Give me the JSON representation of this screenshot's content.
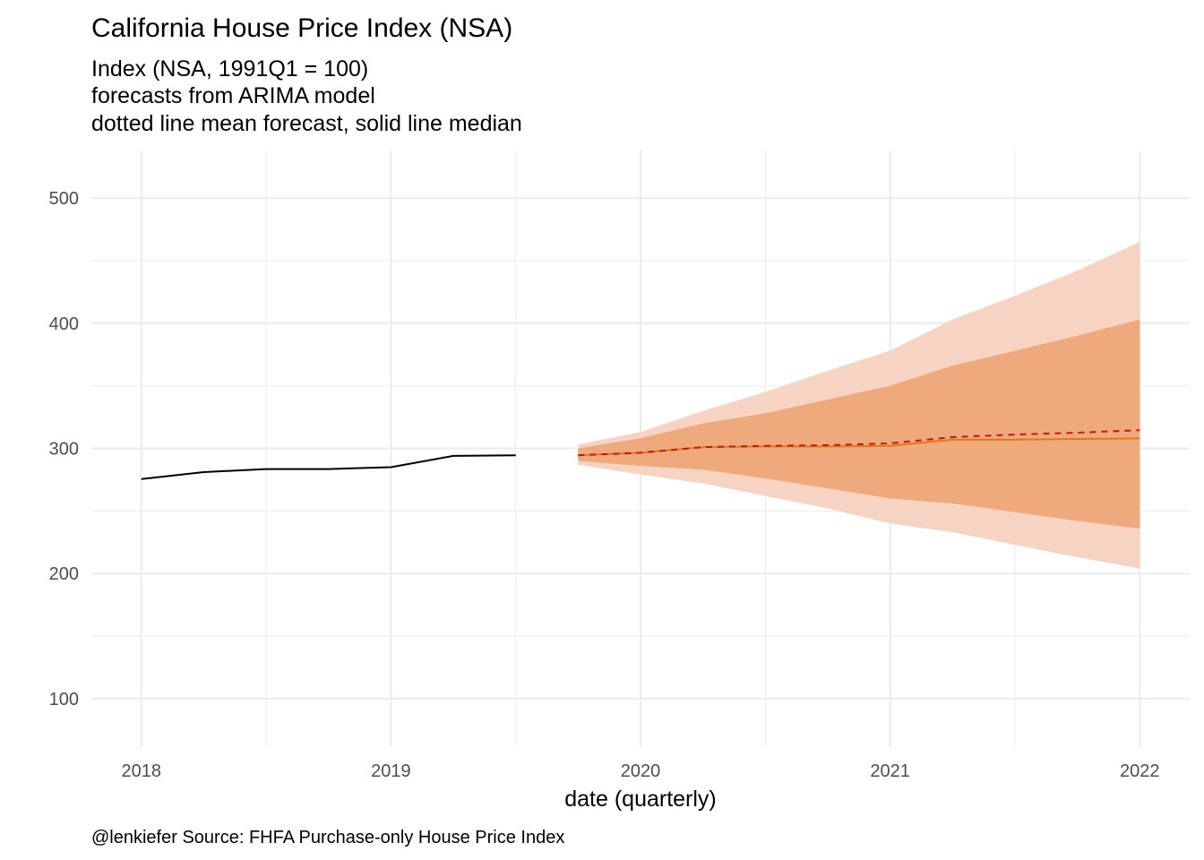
{
  "chart_data": {
    "type": "line",
    "title": "California House Price Index (NSA)",
    "subtitle": [
      "Index (NSA, 1991Q1 = 100)",
      "forecasts from ARIMA model",
      "dotted line mean forecast, solid line median"
    ],
    "xlabel": "date (quarterly)",
    "ylabel": "",
    "caption": "@lenkiefer Source: FHFA Purchase-only House Price Index",
    "xlim": [
      2017.8,
      2022.2
    ],
    "ylim": [
      62,
      538
    ],
    "x_ticks": [
      2018,
      2019,
      2020,
      2021,
      2022
    ],
    "x_tick_labels": [
      "2018",
      "2019",
      "2020",
      "2021",
      "2022"
    ],
    "y_ticks": [
      100,
      200,
      300,
      400,
      500
    ],
    "y_tick_labels": [
      "100",
      "200",
      "300",
      "400",
      "500"
    ],
    "grid": true,
    "colors": {
      "history": "#000000",
      "band_outer": "#f6d3c2",
      "band_inner": "#eeaa7c",
      "median": "#e07a10",
      "mean": "#c81414",
      "grid": "#ebebeb"
    },
    "series": [
      {
        "kind": "history",
        "x": [
          2018.0,
          2018.25,
          2018.5,
          2018.75,
          2019.0,
          2019.25,
          2019.5
        ],
        "values": [
          275.5,
          281,
          283.5,
          283.5,
          285,
          294,
          294.5
        ]
      },
      {
        "kind": "band_outer",
        "x": [
          2019.75,
          2020.0,
          2020.25,
          2020.5,
          2020.75,
          2021.0,
          2021.25,
          2021.5,
          2021.75,
          2022.0
        ],
        "lower": [
          287,
          279,
          272,
          262,
          252,
          240,
          233,
          223,
          213,
          204
        ],
        "upper": [
          303,
          313,
          330,
          345,
          362,
          378,
          403,
          422,
          442,
          465
        ]
      },
      {
        "kind": "band_inner",
        "x": [
          2019.75,
          2020.0,
          2020.25,
          2020.5,
          2020.75,
          2021.0,
          2021.25,
          2021.5,
          2021.75,
          2022.0
        ],
        "lower": [
          290,
          286,
          283,
          276,
          268,
          260,
          256,
          249,
          242,
          236
        ],
        "upper": [
          300,
          308,
          320,
          328,
          339,
          350,
          366,
          378,
          390,
          403
        ]
      },
      {
        "kind": "median",
        "x": [
          2019.75,
          2020.0,
          2020.25,
          2020.5,
          2020.75,
          2021.0,
          2021.25,
          2021.5,
          2021.75,
          2022.0
        ],
        "values": [
          294.5,
          296.5,
          301,
          301.5,
          301.5,
          302,
          307,
          307,
          307.5,
          308
        ]
      },
      {
        "kind": "mean",
        "x": [
          2019.75,
          2020.0,
          2020.25,
          2020.5,
          2020.75,
          2021.0,
          2021.25,
          2021.5,
          2021.75,
          2022.0
        ],
        "values": [
          294.5,
          296.5,
          301,
          302,
          302.5,
          304,
          309,
          311,
          312.5,
          314.5
        ]
      }
    ]
  }
}
